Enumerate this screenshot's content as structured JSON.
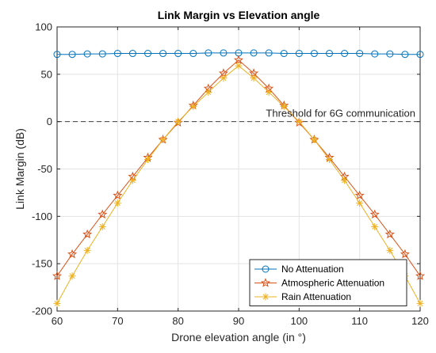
{
  "chart_data": {
    "type": "line",
    "title": "Link Margin vs Elevation angle",
    "xlabel": "Drone elevation angle (in °)",
    "ylabel": "Link Margin (dB)",
    "xlim": [
      60,
      120
    ],
    "ylim": [
      -200,
      100
    ],
    "x_ticks": [
      60,
      70,
      80,
      90,
      100,
      110,
      120
    ],
    "y_ticks": [
      -200,
      -150,
      -100,
      -50,
      0,
      50,
      100
    ],
    "grid": true,
    "legend_position": "bottom-right",
    "x": [
      60,
      62.5,
      65,
      67.5,
      70,
      72.5,
      75,
      77.5,
      80,
      82.5,
      85,
      87.5,
      90,
      92.5,
      95,
      97.5,
      100,
      102.5,
      105,
      107.5,
      110,
      112.5,
      115,
      117.5,
      120
    ],
    "series": [
      {
        "name": "No Attenuation",
        "color": "#0072BD",
        "marker": "circle",
        "values": [
          71,
          71,
          71.5,
          71.5,
          72,
          72,
          72,
          72,
          72,
          72,
          72.5,
          72.5,
          72.5,
          72.5,
          72.5,
          72,
          72,
          72,
          72,
          72,
          72,
          71.5,
          71.5,
          71,
          71
        ]
      },
      {
        "name": "Atmospheric Attenuation",
        "color": "#D95319",
        "marker": "star",
        "values": [
          -163,
          -140,
          -119,
          -98,
          -78,
          -58,
          -38,
          -19,
          -1,
          17,
          35,
          51,
          65,
          51,
          35,
          17,
          -1,
          -19,
          -38,
          -58,
          -78,
          -98,
          -119,
          -140,
          -163
        ]
      },
      {
        "name": "Rain Attenuation",
        "color": "#EDB120",
        "marker": "asterisk",
        "values": [
          -192,
          -163,
          -136,
          -111,
          -86,
          -62,
          -40,
          -19,
          0,
          16,
          31,
          46,
          59,
          46,
          31,
          16,
          0,
          -19,
          -40,
          -62,
          -86,
          -111,
          -136,
          -163,
          -192
        ]
      }
    ],
    "threshold": {
      "value": 0,
      "label": "Threshold for 6G communication",
      "color": "#404040"
    }
  }
}
